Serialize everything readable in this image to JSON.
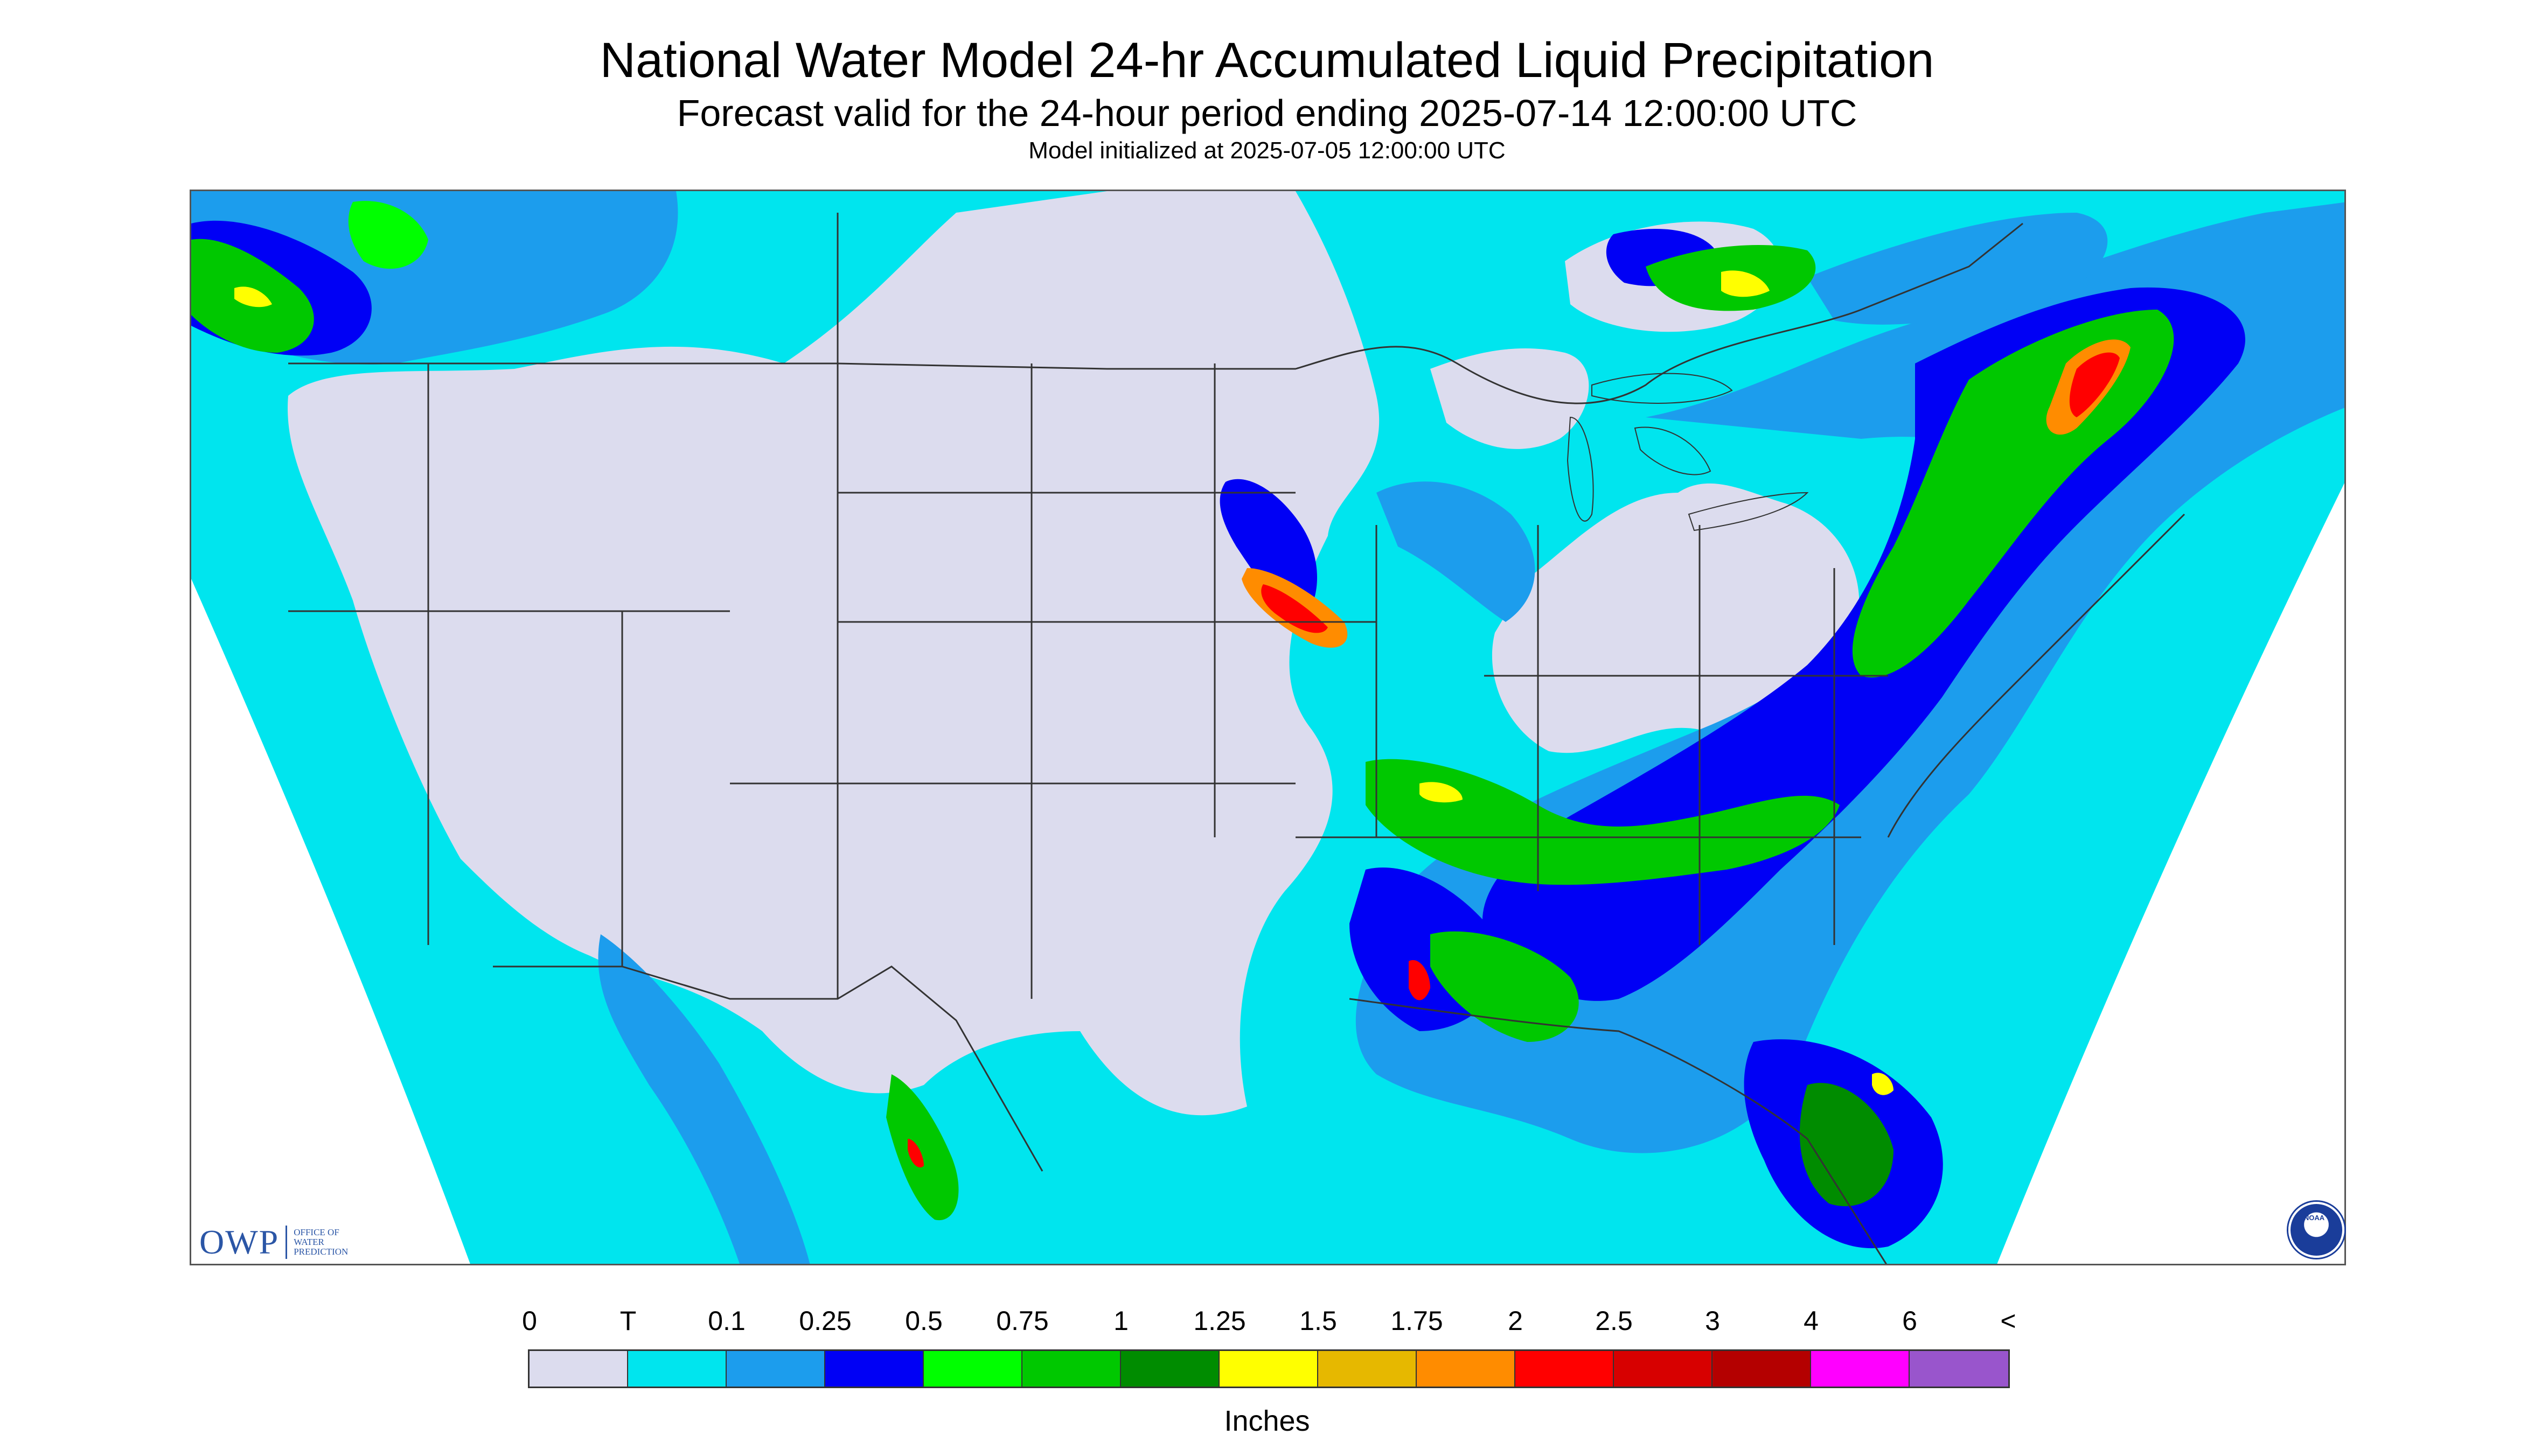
{
  "header": {
    "title": "National Water Model 24-hr Accumulated Liquid Precipitation",
    "subtitle": "Forecast valid for the 24-hour period ending 2025-07-14 12:00:00 UTC",
    "init_line": "Model initialized at 2025-07-05 12:00:00 UTC"
  },
  "logos": {
    "owp_letters": "OWP",
    "owp_line1": "OFFICE OF",
    "owp_line2": "WATER",
    "owp_line3": "PREDICTION",
    "noaa": "NOAA"
  },
  "legend": {
    "labels": [
      "0",
      "T",
      "0.1",
      "0.25",
      "0.5",
      "0.75",
      "1",
      "1.25",
      "1.5",
      "1.75",
      "2",
      "2.5",
      "3",
      "4",
      "6",
      "<"
    ],
    "colors": [
      "#dcdcee",
      "#00e5ee",
      "#1c9ded",
      "#0000f5",
      "#00ff00",
      "#00c800",
      "#008c00",
      "#ffff00",
      "#e6b800",
      "#ff8c00",
      "#ff0000",
      "#d70000",
      "#b40000",
      "#ff00ff",
      "#9955cc"
    ],
    "units": "Inches"
  }
}
